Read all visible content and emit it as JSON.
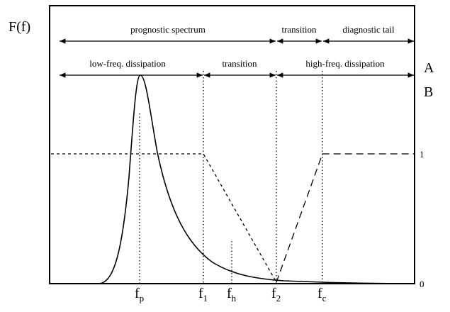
{
  "y_label": "F(f)",
  "row_a": {
    "marker": "A",
    "segments": [
      "prognostic spectrum",
      "transition",
      "diagnostic tail"
    ]
  },
  "row_b": {
    "marker": "B",
    "segments": [
      "low-freq. dissipation",
      "transition",
      "high-freq. dissipation"
    ]
  },
  "right_axis": {
    "top": "1",
    "bottom": "0"
  },
  "x_labels": [
    {
      "base": "f",
      "sub": "p"
    },
    {
      "base": "f",
      "sub": "1"
    },
    {
      "base": "f",
      "sub": "h"
    },
    {
      "base": "f",
      "sub": "2"
    },
    {
      "base": "f",
      "sub": "c"
    }
  ]
}
